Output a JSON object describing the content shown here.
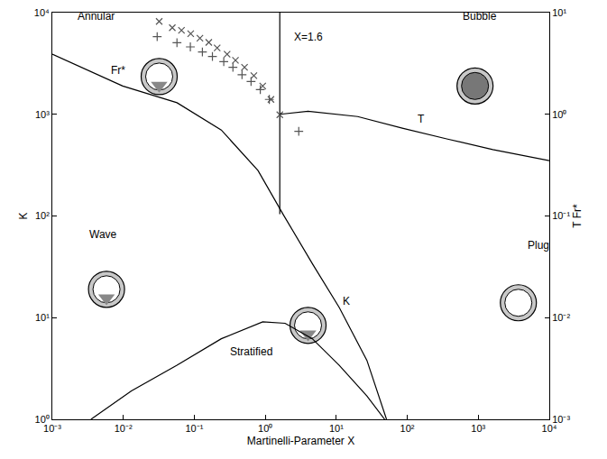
{
  "chart_data": {
    "type": "line",
    "x_title": "Martinelli-Parameter X",
    "y_title": "K",
    "y2_title": "T Fr*",
    "log": true,
    "grid": false,
    "xlim": [
      0.001,
      10000
    ],
    "xticks": [
      {
        "value": 0.001,
        "label": "10⁻³"
      },
      {
        "value": 0.01,
        "label": "10⁻²"
      },
      {
        "value": 0.1,
        "label": "10⁻¹"
      },
      {
        "value": 1,
        "label": "10⁰"
      },
      {
        "value": 10,
        "label": "10¹"
      },
      {
        "value": 100,
        "label": "10²"
      },
      {
        "value": 1000,
        "label": "10³"
      },
      {
        "value": 10000,
        "label": "10⁴"
      }
    ],
    "ylim": [
      1,
      10000
    ],
    "yticks": [
      {
        "value": 1,
        "label": "10⁰"
      },
      {
        "value": 10,
        "label": "10¹"
      },
      {
        "value": 100,
        "label": "10²"
      },
      {
        "value": 1000,
        "label": "10³"
      },
      {
        "value": 10000,
        "label": "10⁴"
      }
    ],
    "y2lim": [
      0.001,
      10
    ],
    "y2ticks": [
      {
        "value": 0.001,
        "label": "10⁻³"
      },
      {
        "value": 0.01,
        "label": "10⁻²"
      },
      {
        "value": 0.1,
        "label": "10⁻¹"
      },
      {
        "value": 1,
        "label": "10⁰"
      },
      {
        "value": 10,
        "label": "10¹"
      }
    ],
    "series": [
      {
        "type": "line",
        "axis": "y2",
        "color": "#000000",
        "line_style": "solid",
        "x": [
          0.001,
          0.0098,
          0.057,
          0.24,
          0.79,
          1.78,
          4.6,
          11,
          27,
          51
        ],
        "values": [
          3.9,
          1.9,
          1.3,
          0.7,
          0.28,
          0.104,
          0.034,
          0.0126,
          0.0038,
          0.001
        ]
      },
      {
        "type": "line",
        "axis": "y2",
        "color": "#000000",
        "line_style": "solid",
        "x": [
          1.6,
          4.0,
          20,
          85,
          370,
          1600,
          10000
        ],
        "values": [
          1.0,
          1.07,
          0.95,
          0.73,
          0.57,
          0.45,
          0.35
        ]
      },
      {
        "type": "line",
        "color": "#000000",
        "line_style": "solid",
        "x": [
          0.0035,
          0.013,
          0.057,
          0.24,
          0.92,
          1.9,
          4.6,
          11,
          27,
          48
        ],
        "values": [
          1,
          1.9,
          3.4,
          6.2,
          9.1,
          8.8,
          6.2,
          3.4,
          1.7,
          1
        ]
      },
      {
        "type": "line",
        "color": "#000000",
        "line_style": "solid",
        "x": [
          1.6,
          1.6
        ],
        "values": [
          104,
          10000
        ]
      },
      {
        "type": "scatter",
        "color": "#555555",
        "marker": "x",
        "x": [
          0.032,
          0.049,
          0.066,
          0.089,
          0.12,
          0.16,
          0.21,
          0.29,
          0.38,
          0.51,
          0.69,
          0.92,
          1.2,
          1.6
        ],
        "values": [
          8200,
          7100,
          6700,
          6200,
          5600,
          5100,
          4500,
          3900,
          3400,
          2900,
          2400,
          1900,
          1400,
          990
        ]
      },
      {
        "type": "scatter",
        "color": "#555555",
        "marker": "cross",
        "x": [
          0.03,
          0.057,
          0.088,
          0.13,
          0.18,
          0.26,
          0.35,
          0.47,
          0.63,
          0.85,
          1.14,
          2.96
        ],
        "values": [
          5800,
          5050,
          4600,
          4100,
          3700,
          3300,
          2900,
          2450,
          2100,
          1750,
          1400,
          680
        ]
      }
    ],
    "annotations": [
      {
        "text": "Annular",
        "x": 0.0041,
        "y": 9300
      },
      {
        "text": "Bubble",
        "x": 1040,
        "y": 9300
      },
      {
        "text": "Wave",
        "x": 0.0052,
        "y": 66
      },
      {
        "text": "Stratified",
        "x": 0.63,
        "y": 4.6
      },
      {
        "text": "Plug",
        "x": 7000,
        "y": 51
      },
      {
        "text": "Fr*",
        "x": 0.0085,
        "y": 2700
      },
      {
        "text": "T",
        "x": 155,
        "y": 900
      },
      {
        "text": "K",
        "x": 14,
        "y": 14.5
      },
      {
        "text": "X=1.6",
        "x": 4.0,
        "y": 5800
      }
    ]
  }
}
